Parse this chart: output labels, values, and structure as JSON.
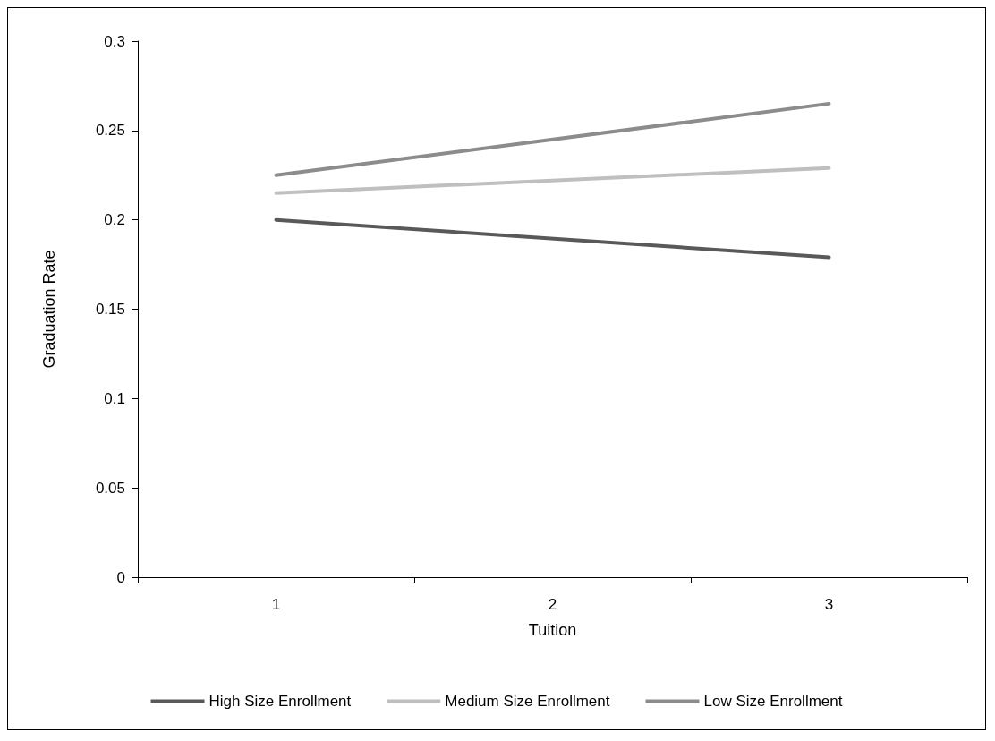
{
  "chart_data": {
    "type": "line",
    "xlabel": "Tuition",
    "ylabel": "Graduation Rate",
    "categories": [
      "1",
      "2",
      "3"
    ],
    "series": [
      {
        "name": "High Size Enrollment",
        "color": "#595959",
        "values": [
          0.2,
          null,
          0.179
        ]
      },
      {
        "name": "Medium Size Enrollment",
        "color": "#bfbfbf",
        "values": [
          0.215,
          null,
          0.229
        ]
      },
      {
        "name": "Low Size Enrollment",
        "color": "#8c8c8c",
        "values": [
          0.225,
          null,
          0.265
        ]
      }
    ],
    "ylim": [
      0,
      0.3
    ],
    "yticks": [
      0,
      0.05,
      0.1,
      0.15,
      0.2,
      0.25,
      0.3
    ],
    "grid": false,
    "legend": "bottom",
    "marker": "none",
    "line_style": "solid"
  }
}
